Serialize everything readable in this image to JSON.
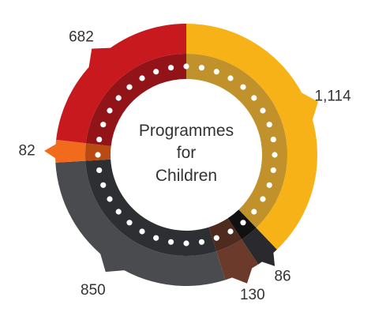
{
  "chart_data": {
    "type": "pie",
    "title": "Programmes for Children",
    "title_lines": [
      "Programmes",
      "for",
      "Children"
    ],
    "slices": [
      {
        "label": "1,114",
        "value": 1114,
        "color": "#F7B218",
        "inner_color": "#C1912B"
      },
      {
        "label": "86",
        "value": 86,
        "color": "#2A2A2E",
        "inner_color": "#111111"
      },
      {
        "label": "130",
        "value": 130,
        "color": "#6B3A2A",
        "inner_color": "#4E2A1F"
      },
      {
        "label": "850",
        "value": 850,
        "color": "#4A4B4F",
        "inner_color": "#2E2F32"
      },
      {
        "label": "82",
        "value": 82,
        "color": "#F26A1B",
        "inner_color": "#B84A12"
      },
      {
        "label": "682",
        "value": 682,
        "color": "#C8191F",
        "inner_color": "#931418"
      }
    ],
    "legend": "none"
  }
}
